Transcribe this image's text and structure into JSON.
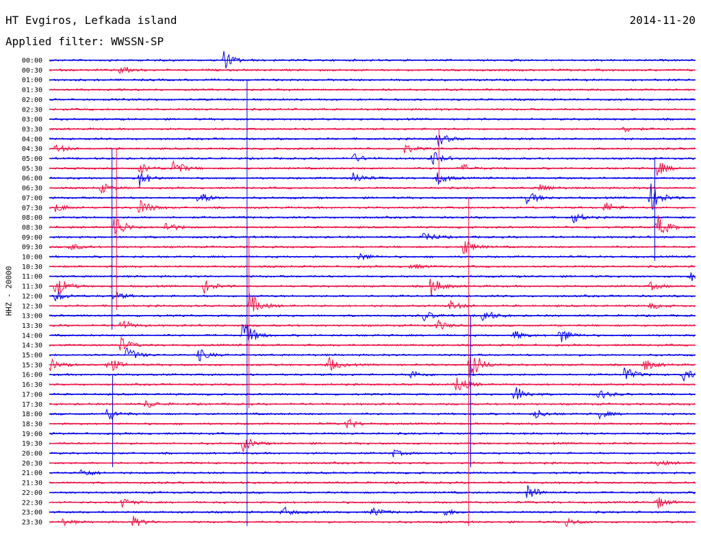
{
  "header": {
    "station": "HT Evgiros, Lefkada island",
    "date": "2014-11-20",
    "filter": "Applied filter: WWSSN-SP"
  },
  "chart_data": {
    "type": "line",
    "title": "HT Evgiros, Lefkada island",
    "ylabel": "HHZ - 20000",
    "time_labels": [
      "00:00",
      "00:30",
      "01:00",
      "01:30",
      "02:00",
      "02:30",
      "03:00",
      "03:30",
      "04:00",
      "04:30",
      "05:00",
      "05:30",
      "06:00",
      "06:30",
      "07:00",
      "07:30",
      "08:00",
      "08:30",
      "09:00",
      "09:30",
      "10:00",
      "10:30",
      "11:00",
      "11:30",
      "12:00",
      "12:30",
      "13:00",
      "13:30",
      "14:00",
      "14:30",
      "15:00",
      "15:30",
      "16:00",
      "16:30",
      "17:00",
      "17:30",
      "18:00",
      "18:30",
      "19:00",
      "19:30",
      "20:00",
      "20:30",
      "21:00",
      "21:30",
      "22:00",
      "22:30",
      "23:00",
      "23:30"
    ],
    "trace_colors": [
      "#0000ee",
      "#ee1144"
    ],
    "events": [
      {
        "trace": "00:00",
        "x": 0.27,
        "amp": 14
      },
      {
        "trace": "00:30",
        "x": 0.11,
        "amp": 8
      },
      {
        "trace": "03:30",
        "x": 0.89,
        "amp": 6
      },
      {
        "trace": "04:00",
        "x": 0.6,
        "amp": 12
      },
      {
        "trace": "04:30",
        "x": 0.01,
        "amp": 7
      },
      {
        "trace": "04:30",
        "x": 0.55,
        "amp": 7
      },
      {
        "trace": "05:00",
        "x": 0.47,
        "amp": 7
      },
      {
        "trace": "05:00",
        "x": 0.59,
        "amp": 14
      },
      {
        "trace": "05:30",
        "x": 0.14,
        "amp": 9
      },
      {
        "trace": "05:30",
        "x": 0.19,
        "amp": 16
      },
      {
        "trace": "05:30",
        "x": 0.64,
        "amp": 6
      },
      {
        "trace": "05:30",
        "x": 0.94,
        "amp": 12
      },
      {
        "trace": "06:00",
        "x": 0.14,
        "amp": 12
      },
      {
        "trace": "06:00",
        "x": 0.47,
        "amp": 10
      },
      {
        "trace": "06:00",
        "x": 0.6,
        "amp": 10
      },
      {
        "trace": "06:30",
        "x": 0.08,
        "amp": 8
      },
      {
        "trace": "06:30",
        "x": 0.76,
        "amp": 7
      },
      {
        "trace": "07:00",
        "x": 0.23,
        "amp": 12
      },
      {
        "trace": "07:00",
        "x": 0.74,
        "amp": 12
      },
      {
        "trace": "07:00",
        "x": 0.93,
        "amp": 22
      },
      {
        "trace": "07:30",
        "x": 0.01,
        "amp": 7
      },
      {
        "trace": "07:30",
        "x": 0.14,
        "amp": 14
      },
      {
        "trace": "07:30",
        "x": 0.86,
        "amp": 9
      },
      {
        "trace": "08:00",
        "x": 0.81,
        "amp": 9
      },
      {
        "trace": "08:30",
        "x": 0.1,
        "amp": 22
      },
      {
        "trace": "08:30",
        "x": 0.18,
        "amp": 9
      },
      {
        "trace": "08:30",
        "x": 0.94,
        "amp": 20
      },
      {
        "trace": "09:00",
        "x": 0.58,
        "amp": 10
      },
      {
        "trace": "09:30",
        "x": 0.03,
        "amp": 7
      },
      {
        "trace": "09:30",
        "x": 0.64,
        "amp": 14
      },
      {
        "trace": "10:00",
        "x": 0.48,
        "amp": 6
      },
      {
        "trace": "10:30",
        "x": 0.56,
        "amp": 5
      },
      {
        "trace": "11:00",
        "x": 0.99,
        "amp": 10
      },
      {
        "trace": "11:30",
        "x": 0.01,
        "amp": 18
      },
      {
        "trace": "11:30",
        "x": 0.24,
        "amp": 10
      },
      {
        "trace": "11:30",
        "x": 0.59,
        "amp": 16
      },
      {
        "trace": "11:30",
        "x": 0.93,
        "amp": 6
      },
      {
        "trace": "12:00",
        "x": 0.01,
        "amp": 8
      },
      {
        "trace": "12:00",
        "x": 0.1,
        "amp": 7
      },
      {
        "trace": "12:30",
        "x": 0.31,
        "amp": 20
      },
      {
        "trace": "12:30",
        "x": 0.62,
        "amp": 8
      },
      {
        "trace": "12:30",
        "x": 0.93,
        "amp": 5
      },
      {
        "trace": "13:00",
        "x": 0.58,
        "amp": 8
      },
      {
        "trace": "13:00",
        "x": 0.67,
        "amp": 12
      },
      {
        "trace": "13:30",
        "x": 0.11,
        "amp": 10
      },
      {
        "trace": "13:30",
        "x": 0.6,
        "amp": 8
      },
      {
        "trace": "14:00",
        "x": 0.3,
        "amp": 26
      },
      {
        "trace": "14:00",
        "x": 0.72,
        "amp": 7
      },
      {
        "trace": "14:00",
        "x": 0.79,
        "amp": 14
      },
      {
        "trace": "14:30",
        "x": 0.11,
        "amp": 12
      },
      {
        "trace": "15:00",
        "x": 0.12,
        "amp": 12
      },
      {
        "trace": "15:00",
        "x": 0.23,
        "amp": 10
      },
      {
        "trace": "15:30",
        "x": 0.0,
        "amp": 10
      },
      {
        "trace": "15:30",
        "x": 0.09,
        "amp": 14
      },
      {
        "trace": "15:30",
        "x": 0.43,
        "amp": 14
      },
      {
        "trace": "15:30",
        "x": 0.65,
        "amp": 30
      },
      {
        "trace": "15:30",
        "x": 0.92,
        "amp": 10
      },
      {
        "trace": "16:00",
        "x": 0.56,
        "amp": 7
      },
      {
        "trace": "16:00",
        "x": 0.89,
        "amp": 12
      },
      {
        "trace": "16:00",
        "x": 0.98,
        "amp": 10
      },
      {
        "trace": "16:30",
        "x": 0.63,
        "amp": 16
      },
      {
        "trace": "17:00",
        "x": 0.72,
        "amp": 14
      },
      {
        "trace": "17:00",
        "x": 0.85,
        "amp": 8
      },
      {
        "trace": "17:30",
        "x": 0.15,
        "amp": 7
      },
      {
        "trace": "18:00",
        "x": 0.09,
        "amp": 10
      },
      {
        "trace": "18:00",
        "x": 0.75,
        "amp": 8
      },
      {
        "trace": "18:00",
        "x": 0.85,
        "amp": 7
      },
      {
        "trace": "18:30",
        "x": 0.46,
        "amp": 8
      },
      {
        "trace": "19:30",
        "x": 0.3,
        "amp": 12
      },
      {
        "trace": "20:00",
        "x": 0.53,
        "amp": 6
      },
      {
        "trace": "20:30",
        "x": 0.94,
        "amp": 5
      },
      {
        "trace": "21:00",
        "x": 0.05,
        "amp": 7
      },
      {
        "trace": "22:00",
        "x": 0.74,
        "amp": 14
      },
      {
        "trace": "22:30",
        "x": 0.11,
        "amp": 8
      },
      {
        "trace": "22:30",
        "x": 0.94,
        "amp": 10
      },
      {
        "trace": "23:00",
        "x": 0.36,
        "amp": 9
      },
      {
        "trace": "23:00",
        "x": 0.5,
        "amp": 8
      },
      {
        "trace": "23:00",
        "x": 0.61,
        "amp": 6
      },
      {
        "trace": "23:30",
        "x": 0.02,
        "amp": 5
      },
      {
        "trace": "23:30",
        "x": 0.13,
        "amp": 8
      },
      {
        "trace": "23:30",
        "x": 0.8,
        "amp": 7
      }
    ],
    "spikes": [
      {
        "x": 0.097,
        "from": "04:30",
        "to": "13:30"
      },
      {
        "x": 0.104,
        "from": "04:30",
        "to": "12:30"
      },
      {
        "x": 0.306,
        "from": "01:00",
        "to": "23:30"
      },
      {
        "x": 0.309,
        "from": "09:00",
        "to": "17:30"
      },
      {
        "x": 0.098,
        "from": "16:00",
        "to": "20:30"
      },
      {
        "x": 0.649,
        "from": "07:00",
        "to": "23:30"
      },
      {
        "x": 0.652,
        "from": "13:00",
        "to": "20:30"
      },
      {
        "x": 0.603,
        "from": "03:30",
        "to": "06:00"
      },
      {
        "x": 0.937,
        "from": "05:00",
        "to": "10:00"
      }
    ]
  }
}
